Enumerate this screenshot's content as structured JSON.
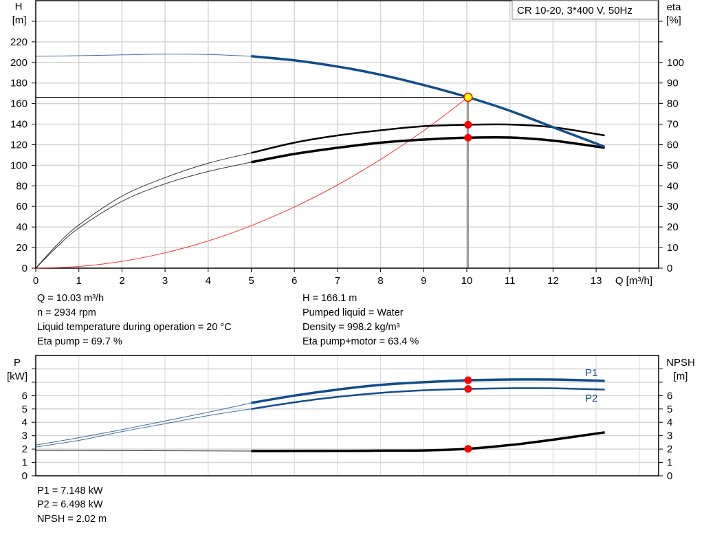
{
  "chart_data": [
    {
      "type": "line",
      "title": "CR 10-20, 3*400 V, 50Hz",
      "xlabel": "Q [m³/h]",
      "ylabel": "H\n[m]",
      "ylabel_right": "eta\n[%]",
      "xlim": [
        0,
        14.45
      ],
      "ylim": [
        0,
        260
      ],
      "ylim_right": [
        0,
        130
      ],
      "xticks": [
        0,
        1,
        2,
        3,
        4,
        5,
        6,
        7,
        8,
        9,
        10,
        11,
        12,
        13
      ],
      "yticks": [
        0,
        20,
        40,
        60,
        80,
        100,
        120,
        140,
        160,
        180,
        200,
        220
      ],
      "yticks_right": [
        0,
        10,
        20,
        30,
        40,
        50,
        60,
        70,
        80,
        90,
        100
      ],
      "grid": true,
      "operating_point": {
        "Q": 10.03,
        "H": 166.1,
        "eta_pump": 69.7,
        "eta_pump_motor": 63.4
      },
      "series": [
        {
          "key": "H",
          "axis": "left",
          "color": "#0f4d8c",
          "thin_until": 5,
          "x": [
            0,
            1,
            2,
            3,
            4,
            5,
            6,
            7,
            8,
            9,
            10.03,
            11,
            12,
            13.2
          ],
          "y": [
            206,
            206.5,
            207.3,
            208,
            207.7,
            206,
            202,
            196,
            188,
            178,
            166.1,
            153,
            137,
            118
          ]
        },
        {
          "key": "eta_pump",
          "axis": "right",
          "color": "#000000",
          "thin_until": 5,
          "x": [
            0,
            0.5,
            1,
            2,
            3,
            4,
            5,
            6,
            7,
            8,
            9,
            10.03,
            11,
            12,
            13.2
          ],
          "y": [
            0,
            11.5,
            21,
            35,
            44,
            51,
            56,
            61,
            64.5,
            67,
            69,
            69.7,
            69.8,
            68.5,
            64.5
          ]
        },
        {
          "key": "eta_pump_motor",
          "axis": "right",
          "color": "#000000",
          "thin_until": 5,
          "x": [
            0,
            0.5,
            1,
            2,
            3,
            4,
            5,
            6,
            7,
            8,
            9,
            10.03,
            11,
            12,
            13.2
          ],
          "y": [
            0,
            10.5,
            19.5,
            32.5,
            41,
            47,
            51.5,
            55.5,
            58.5,
            61,
            62.5,
            63.4,
            63.5,
            62,
            58.5
          ]
        },
        {
          "key": "system_curve",
          "axis": "left",
          "color": "#ff3030",
          "x": [
            0,
            1,
            2,
            3,
            4,
            5,
            6,
            7,
            8,
            9,
            10.03
          ],
          "y": [
            0,
            1.65,
            6.6,
            14.9,
            26.4,
            41.3,
            59.4,
            80.9,
            105.7,
            133.7,
            166.1
          ]
        }
      ]
    },
    {
      "type": "line",
      "ylabel": "P\n[kW]",
      "ylabel_right": "NPSH\n[m]",
      "xlim": [
        0,
        14.45
      ],
      "ylim": [
        0,
        9
      ],
      "yticks": [
        0,
        1,
        2,
        3,
        4,
        5,
        6
      ],
      "yticks_right": [
        0,
        1,
        2,
        3,
        4,
        5,
        6
      ],
      "grid": true,
      "operating_point": {
        "Q": 10.03,
        "P1": 7.148,
        "P2": 6.498,
        "NPSH": 2.02
      },
      "series": [
        {
          "name": "P1",
          "color": "#0f4d8c",
          "thin_until": 5,
          "x": [
            0,
            1,
            2,
            3,
            4,
            5,
            6,
            7,
            8,
            9,
            10.03,
            11,
            12,
            13.2
          ],
          "y": [
            2.3,
            2.85,
            3.45,
            4.1,
            4.75,
            5.45,
            6.0,
            6.45,
            6.8,
            7.0,
            7.148,
            7.2,
            7.2,
            7.1
          ]
        },
        {
          "name": "P2",
          "color": "#0f4d8c",
          "thin_until": 5,
          "x": [
            0,
            1,
            2,
            3,
            4,
            5,
            6,
            7,
            8,
            9,
            10.03,
            11,
            12,
            13.2
          ],
          "y": [
            2.15,
            2.65,
            3.3,
            3.9,
            4.5,
            5.0,
            5.5,
            5.9,
            6.2,
            6.4,
            6.498,
            6.55,
            6.55,
            6.45
          ]
        },
        {
          "key": "NPSH",
          "color": "#000000",
          "thin_until": 5,
          "x": [
            0,
            2,
            5,
            7,
            8,
            9,
            10.03,
            11,
            12,
            13.2
          ],
          "y": [
            1.9,
            1.88,
            1.85,
            1.86,
            1.88,
            1.9,
            2.02,
            2.3,
            2.7,
            3.25
          ]
        }
      ]
    }
  ],
  "info_top_left": [
    "Q = 10.03 m³/h",
    "n = 2934 rpm",
    "Liquid temperature during operation = 20 °C",
    "Eta pump = 69.7 %"
  ],
  "info_top_right": [
    "H = 166.1 m",
    "Pumped liquid = Water",
    "Density = 998.2 kg/m³",
    "Eta pump+motor = 63.4 %"
  ],
  "info_bottom": [
    "P1 = 7.148 kW",
    "P2 = 6.498 kW",
    "NPSH = 2.02 m"
  ]
}
